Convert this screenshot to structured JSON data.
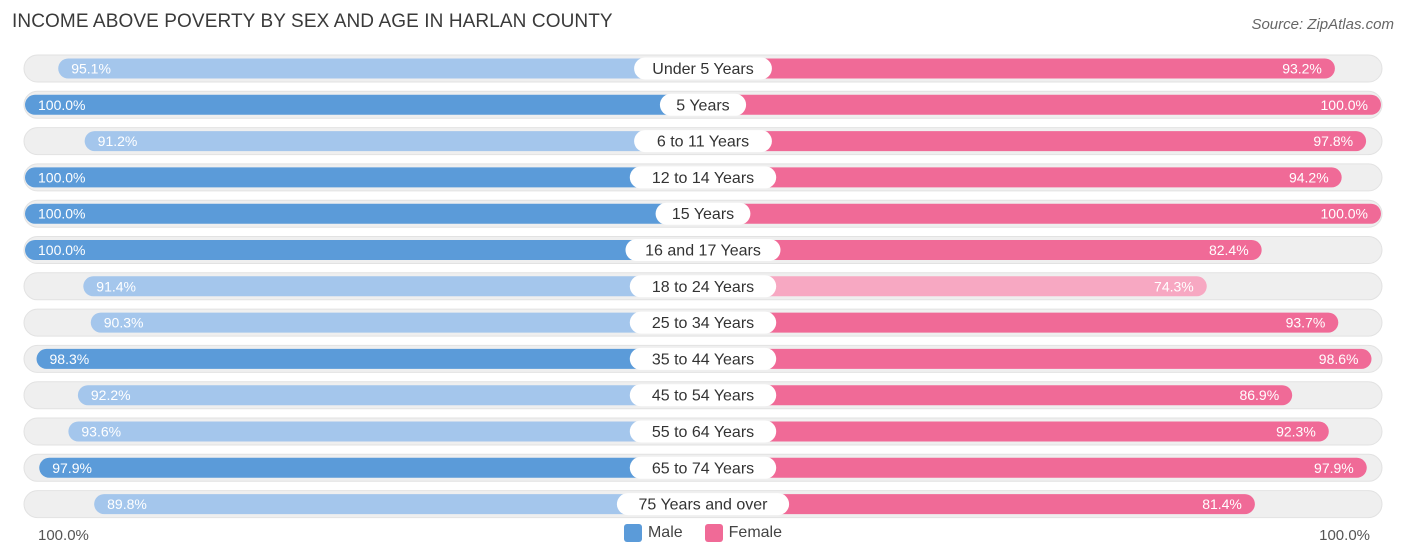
{
  "chart_data": {
    "type": "bar",
    "orientation": "horizontal-diverging",
    "title": "INCOME ABOVE POVERTY BY SEX AND AGE IN HARLAN COUNTY",
    "source": "Source: ZipAtlas.com",
    "categories": [
      "Under 5 Years",
      "5 Years",
      "6 to 11 Years",
      "12 to 14 Years",
      "15 Years",
      "16 and 17 Years",
      "18 to 24 Years",
      "25 to 34 Years",
      "35 to 44 Years",
      "45 to 54 Years",
      "55 to 64 Years",
      "65 to 74 Years",
      "75 Years and over"
    ],
    "series": [
      {
        "name": "Male",
        "values": [
          95.1,
          100.0,
          91.2,
          100.0,
          100.0,
          100.0,
          91.4,
          90.3,
          98.3,
          92.2,
          93.6,
          97.9,
          89.8
        ],
        "labels": [
          "95.1%",
          "100.0%",
          "91.2%",
          "100.0%",
          "100.0%",
          "100.0%",
          "91.4%",
          "90.3%",
          "98.3%",
          "92.2%",
          "93.6%",
          "97.9%",
          "89.8%"
        ]
      },
      {
        "name": "Female",
        "values": [
          93.2,
          100.0,
          97.8,
          94.2,
          100.0,
          82.4,
          74.3,
          93.7,
          98.6,
          86.9,
          92.3,
          97.9,
          81.4
        ],
        "labels": [
          "93.2%",
          "100.0%",
          "97.8%",
          "94.2%",
          "100.0%",
          "82.4%",
          "74.3%",
          "93.7%",
          "98.6%",
          "86.9%",
          "92.3%",
          "97.9%",
          "81.4%"
        ]
      }
    ],
    "xlim": [
      0,
      100
    ],
    "axis_left_label": "100.0%",
    "axis_right_label": "100.0%",
    "legend_position": "bottom-center",
    "colors": {
      "male_strong": "#5b9bd9",
      "male_light": "#a4c6ec",
      "female_strong": "#f06a97",
      "female_light": "#f7a8c2",
      "track": "#efefef"
    }
  }
}
